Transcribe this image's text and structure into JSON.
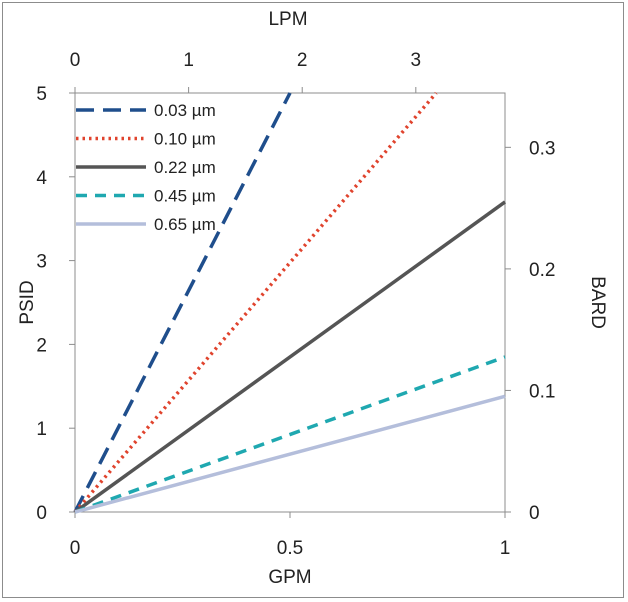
{
  "chart_data": {
    "type": "line",
    "title": "",
    "xlabel": "GPM",
    "ylabel": "PSID",
    "x2label": "LPM",
    "y2label": "BARD",
    "xlim": [
      0,
      1
    ],
    "ylim": [
      0,
      5
    ],
    "x2lim": [
      0,
      3.785
    ],
    "y2lim": [
      0,
      0.3447
    ],
    "x_ticks": [
      "0",
      "0.5",
      "1"
    ],
    "y_ticks": [
      "0",
      "1",
      "2",
      "3",
      "4",
      "5"
    ],
    "x2_ticks": [
      "0",
      "1",
      "2",
      "3"
    ],
    "y2_ticks": [
      "0",
      "0.1",
      "0.2",
      "0.3"
    ],
    "grid": false,
    "legend_position": "top-left",
    "series": [
      {
        "name": "0.03 µm",
        "color": "#1f4e8c",
        "style": "dashed",
        "x": [
          0,
          0.5
        ],
        "y": [
          0,
          5.0
        ]
      },
      {
        "name": "0.10 µm",
        "color": "#e0432d",
        "style": "dotted",
        "x": [
          0,
          0.84
        ],
        "y": [
          0,
          5.0
        ]
      },
      {
        "name": "0.22 µm",
        "color": "#555555",
        "style": "solid",
        "x": [
          0,
          1
        ],
        "y": [
          0,
          3.7
        ]
      },
      {
        "name": "0.45 µm",
        "color": "#1fa8b0",
        "style": "dashed",
        "x": [
          0,
          1
        ],
        "y": [
          0,
          1.85
        ]
      },
      {
        "name": "0.65 µm",
        "color": "#b4bedb",
        "style": "solid",
        "x": [
          0,
          1
        ],
        "y": [
          0,
          1.38
        ]
      }
    ]
  }
}
